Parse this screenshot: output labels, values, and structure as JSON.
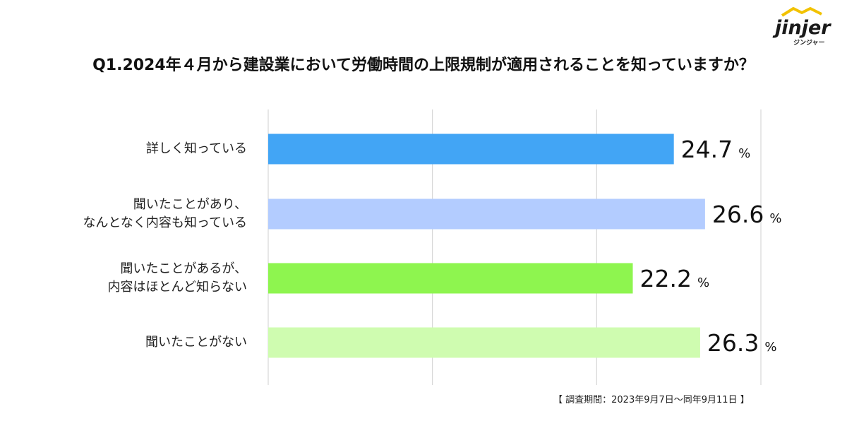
{
  "logo": {
    "word": "jinjer",
    "sub": "ジンジャー"
  },
  "title": "Q1.2024年４月から建設業において労働時間の上限規制が適用されることを知っていますか？",
  "footnote": "【 調査期間：2023年9月7日～同年9月11日 】",
  "chart_data": {
    "type": "bar",
    "orientation": "horizontal",
    "categories": [
      [
        "詳しく知っている"
      ],
      [
        "聞いたことがあり、",
        "なんとなく内容も知っている"
      ],
      [
        "聞いたことがあるが、",
        "内容はほとんど知らない"
      ],
      [
        "聞いたことがない"
      ]
    ],
    "values": [
      24.7,
      26.6,
      22.2,
      26.3
    ],
    "value_labels": [
      "24.7",
      "26.6",
      "22.2",
      "26.3"
    ],
    "unit": "%",
    "colors": [
      "#42a5f5",
      "#b3ccff",
      "#8ef54f",
      "#cffcb0"
    ],
    "xlim": [
      0,
      30
    ],
    "grid": true,
    "gridline_values": [
      0,
      10,
      20,
      30
    ]
  }
}
